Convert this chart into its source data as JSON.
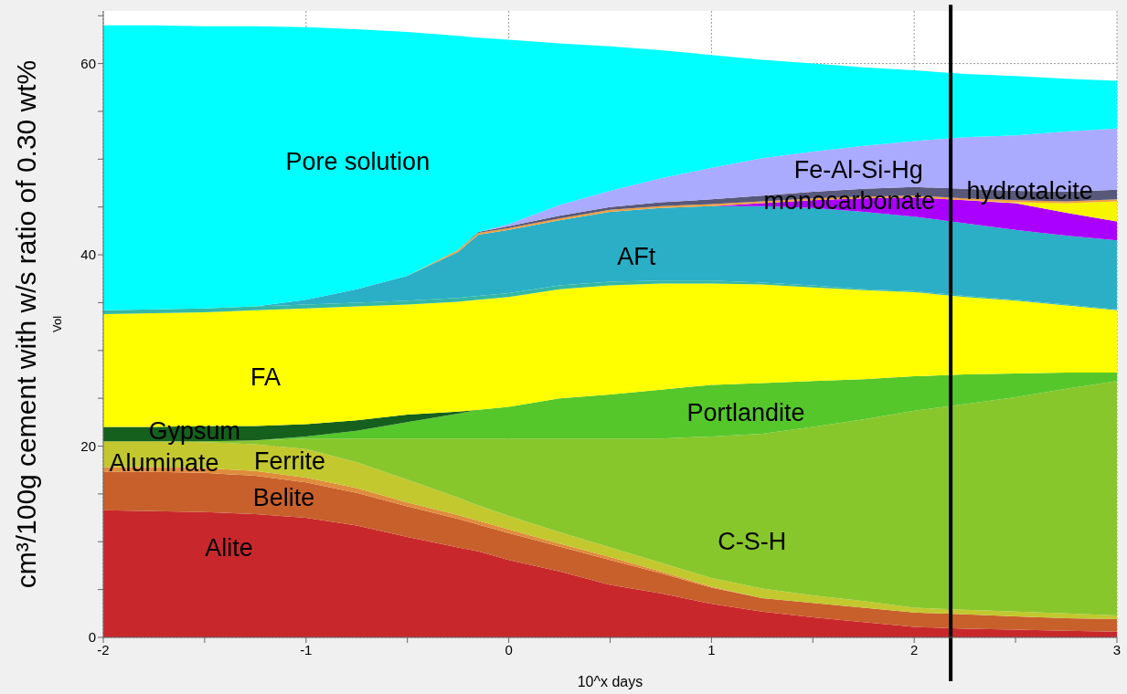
{
  "chart_data": {
    "type": "area",
    "stacked": true,
    "xlabel": "10^x days",
    "ylabel": "cm³/100g cement with w/s ratio of 0.30 wt%",
    "annotations": [
      "Vol"
    ],
    "x": [
      -2,
      -1.75,
      -1.5,
      -1.25,
      -1,
      -0.75,
      -0.5,
      -0.25,
      -0.15,
      0,
      0.25,
      0.5,
      0.75,
      1,
      1.25,
      1.5,
      1.75,
      2,
      2.25,
      2.5,
      2.75,
      3
    ],
    "series": [
      {
        "name": "Alite",
        "color": "#c8282c",
        "values": [
          13.3,
          13.2,
          13.1,
          12.9,
          12.5,
          11.7,
          10.5,
          9.4,
          9.0,
          8.1,
          6.9,
          5.5,
          4.6,
          3.5,
          2.7,
          2.1,
          1.6,
          1.1,
          0.9,
          0.8,
          0.7,
          0.6
        ]
      },
      {
        "name": "Belite",
        "color": "#c8602c",
        "values": [
          4.0,
          4.1,
          4.1,
          4.0,
          3.7,
          3.4,
          3.2,
          3.0,
          2.8,
          2.8,
          2.6,
          2.6,
          2.1,
          1.7,
          1.4,
          1.5,
          1.5,
          1.5,
          1.5,
          1.4,
          1.3,
          1.3
        ]
      },
      {
        "name": "Aluminate",
        "color": "#e08c3c",
        "values": [
          0.5,
          0.5,
          0.5,
          0.5,
          0.5,
          0.5,
          0.4,
          0.4,
          0.4,
          0.4,
          0.3,
          0.3,
          0.2,
          0.1,
          0,
          null,
          null,
          null,
          null,
          null,
          null,
          null
        ]
      },
      {
        "name": "Ferrite",
        "color": "#c2c82e",
        "values": [
          2.7,
          2.7,
          2.7,
          2.8,
          3.0,
          2.7,
          2.4,
          1.8,
          1.6,
          1.4,
          1.2,
          1.0,
          0.9,
          0.9,
          1.0,
          0.8,
          0.7,
          0.5,
          0.5,
          0.5,
          0.5,
          0.4
        ]
      },
      {
        "name": "C-S-H",
        "color": "#88c72c",
        "values": [
          null,
          0,
          0.1,
          0.4,
          1.1,
          2.5,
          4.3,
          6.2,
          7.0,
          8.1,
          9.8,
          11.4,
          13.0,
          14.8,
          16.2,
          17.6,
          19.0,
          20.6,
          21.5,
          22.4,
          23.5,
          24.5
        ]
      },
      {
        "name": "Portlandite",
        "color": "#55c72b",
        "values": [
          null,
          null,
          null,
          0,
          0.2,
          0.8,
          1.7,
          2.6,
          3.0,
          3.3,
          4.2,
          4.6,
          5.1,
          5.4,
          5.3,
          4.8,
          4.2,
          3.6,
          3.1,
          2.5,
          1.7,
          0.9
        ]
      },
      {
        "name": "Gypsum",
        "color": "#16601e",
        "values": [
          1.5,
          1.5,
          1.6,
          1.5,
          1.3,
          1.1,
          0.8,
          0.2,
          0,
          null,
          null,
          null,
          null,
          null,
          null,
          null,
          null,
          null,
          null,
          null,
          null,
          null
        ]
      },
      {
        "name": "FA",
        "color": "#ffff00",
        "values": [
          11.8,
          11.9,
          11.9,
          12.1,
          12.1,
          11.9,
          11.5,
          11.5,
          11.5,
          11.5,
          11.4,
          11.4,
          11.1,
          10.6,
          10.3,
          9.8,
          9.3,
          8.8,
          8.1,
          7.6,
          7.0,
          6.5
        ]
      },
      {
        "color": "#34b8a4",
        "values": [
          0.4,
          0.4,
          0.4,
          0.4,
          0.4,
          0.4,
          0.4,
          0.4,
          0.4,
          0.4,
          0.4,
          0.4,
          0.3,
          0.3,
          0.2,
          0.2,
          0.1,
          0.1,
          0.1,
          0.1,
          0.1,
          0.1
        ]
      },
      {
        "name": "AFt",
        "color": "#2aafc6",
        "values": [
          null,
          null,
          null,
          0,
          0.5,
          1.4,
          2.6,
          4.8,
          6.4,
          6.6,
          6.8,
          7.3,
          7.6,
          7.8,
          8.0,
          8.1,
          8.1,
          7.8,
          7.6,
          7.3,
          7.2,
          7.2
        ]
      },
      {
        "name": "monocarbonate",
        "color": "#aa00ff",
        "values": [
          null,
          null,
          null,
          null,
          null,
          null,
          null,
          null,
          null,
          null,
          null,
          null,
          null,
          0,
          0.3,
          0.8,
          1.4,
          2.0,
          2.4,
          2.8,
          2.4,
          2.0
        ]
      },
      {
        "color": "#f7f500",
        "values": [
          null,
          null,
          null,
          null,
          null,
          null,
          null,
          null,
          null,
          null,
          null,
          null,
          null,
          null,
          null,
          null,
          null,
          null,
          0,
          0.1,
          1.0,
          2.1
        ]
      },
      {
        "color": "#f0a040",
        "values": [
          null,
          null,
          null,
          null,
          null,
          null,
          0,
          0.2,
          0.2,
          0.2,
          0.2,
          0.2,
          0.2,
          0.2,
          0.2,
          0.2,
          0.2,
          0.2,
          0.2,
          0.2,
          0.2,
          0.2
        ]
      },
      {
        "name": "hydrotalcite",
        "color": "#58587a",
        "values": [
          null,
          null,
          null,
          null,
          null,
          null,
          null,
          0,
          0.1,
          0.2,
          0.3,
          0.3,
          0.4,
          0.5,
          0.6,
          0.7,
          0.8,
          0.9,
          1.0,
          1.0,
          1.0,
          1.0
        ]
      },
      {
        "name": "Fe-Al-Si-Hg",
        "color": "#aaaaff",
        "values": [
          null,
          null,
          null,
          null,
          null,
          null,
          null,
          null,
          0,
          0.2,
          1.1,
          1.7,
          2.5,
          3.3,
          3.9,
          4.2,
          4.5,
          4.8,
          5.4,
          5.8,
          6.3,
          6.4
        ]
      },
      {
        "name": "Pore solution",
        "color": "#00ffff",
        "values": [
          29.8,
          29.7,
          29.5,
          29.3,
          28.5,
          27.2,
          25.5,
          22.4,
          20.3,
          19.3,
          16.9,
          15.1,
          13.4,
          11.8,
          10.3,
          9.2,
          8.2,
          7.4,
          6.6,
          6.2,
          5.5,
          5.0
        ]
      }
    ],
    "xlim": [
      -2,
      3
    ],
    "ylim": [
      0,
      65.5
    ],
    "xticks": [
      -2,
      {
        "value": -1.5,
        "label": null
      },
      -1,
      {
        "value": -0.5,
        "label": null
      },
      0,
      {
        "value": 0.5,
        "label": null
      },
      1,
      {
        "value": 1.5,
        "label": null
      },
      2,
      {
        "value": 2.5,
        "label": null
      },
      3
    ],
    "yticks": [
      0,
      {
        "value": 5,
        "label": null
      },
      {
        "value": 10,
        "label": null
      },
      {
        "value": 15,
        "label": null
      },
      20,
      {
        "value": 25,
        "label": null
      },
      {
        "value": 30,
        "label": null
      },
      {
        "value": 35,
        "label": null
      },
      40,
      {
        "value": 45,
        "label": null
      },
      {
        "value": 50,
        "label": null
      },
      {
        "value": 55,
        "label": null
      },
      60,
      {
        "value": 65,
        "label": null
      }
    ],
    "grid": true,
    "ref_lines": [
      {
        "axis": "x",
        "value": 2.18,
        "color": "#000000"
      }
    ]
  }
}
